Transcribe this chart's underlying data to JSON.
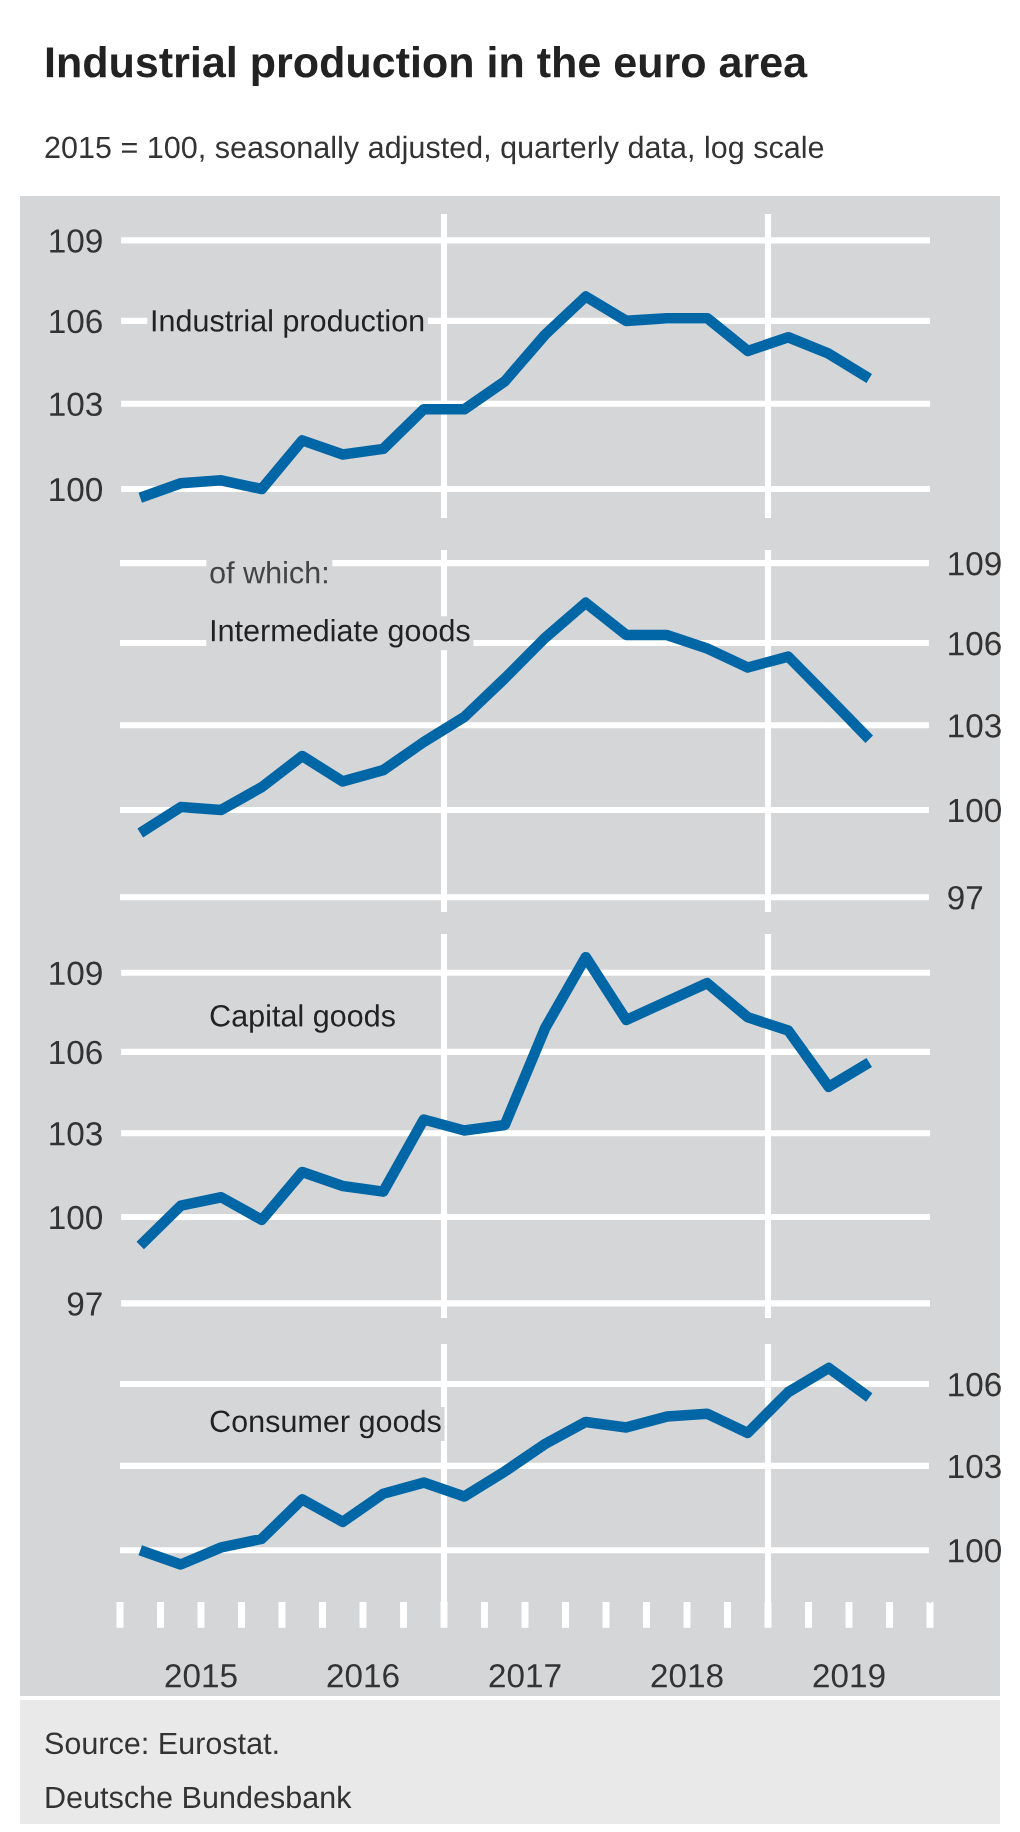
{
  "chart_data": [
    {
      "type": "line",
      "title": "Industrial production in the euro area",
      "subtitle": "2015 = 100, seasonally adjusted, quarterly data, log scale",
      "log": true,
      "grid": "y",
      "tick_labels": "y",
      "xlim": [
        2015,
        2020
      ],
      "ylim": [
        99,
        110
      ],
      "yticks": [
        100,
        103,
        106,
        109
      ],
      "x": [
        2015.125,
        2015.375,
        2015.625,
        2015.875,
        2016.125,
        2016.375,
        2016.625,
        2016.875,
        2017.125,
        2017.375,
        2017.625,
        2017.875,
        2018.125,
        2018.375,
        2018.625,
        2018.875,
        2019.125,
        2019.375,
        2019.625
      ],
      "series": [
        {
          "name": "Industrial production",
          "color": "#0066a6",
          "values": [
            99.7,
            100.2,
            100.3,
            100.0,
            101.7,
            101.2,
            101.4,
            102.8,
            102.8,
            103.8,
            105.5,
            106.9,
            106.0,
            106.1,
            106.1,
            104.9,
            105.4,
            104.8,
            103.9
          ]
        }
      ],
      "ref_lines": [
        {
          "axis": "x",
          "value": 2017,
          "color": "#ffffff"
        },
        {
          "axis": "x",
          "value": 2019,
          "color": "#ffffff"
        }
      ]
    },
    {
      "type": "line",
      "log": true,
      "grid": "y",
      "tick_labels": "y",
      "xlim": [
        2015,
        2020
      ],
      "y2lim": [
        96.5,
        109.5
      ],
      "y2ticks": [
        97,
        100,
        103,
        106,
        109
      ],
      "annotations": [
        "of which:"
      ],
      "x": [
        2015.125,
        2015.375,
        2015.625,
        2015.875,
        2016.125,
        2016.375,
        2016.625,
        2016.875,
        2017.125,
        2017.375,
        2017.625,
        2017.875,
        2018.125,
        2018.375,
        2018.625,
        2018.875,
        2019.125,
        2019.375,
        2019.625
      ],
      "series": [
        {
          "name": "Intermediate goods",
          "color": "#0066a6",
          "axis": "y2",
          "values": [
            99.2,
            100.1,
            100.0,
            100.8,
            101.9,
            101.0,
            101.4,
            102.4,
            103.3,
            104.7,
            106.2,
            107.5,
            106.3,
            106.3,
            105.8,
            105.1,
            105.5,
            104.0,
            102.5
          ]
        }
      ],
      "ref_lines": [
        {
          "axis": "x",
          "value": 2017,
          "color": "#ffffff"
        },
        {
          "axis": "x",
          "value": 2019,
          "color": "#ffffff"
        }
      ]
    },
    {
      "type": "line",
      "log": true,
      "grid": "y",
      "tick_labels": "y",
      "xlim": [
        2015,
        2020
      ],
      "ylim": [
        96.5,
        110.5
      ],
      "yticks": [
        97,
        100,
        103,
        106,
        109
      ],
      "x": [
        2015.125,
        2015.375,
        2015.625,
        2015.875,
        2016.125,
        2016.375,
        2016.625,
        2016.875,
        2017.125,
        2017.375,
        2017.625,
        2017.875,
        2018.125,
        2018.375,
        2018.625,
        2018.875,
        2019.125,
        2019.375,
        2019.625
      ],
      "series": [
        {
          "name": "Capital goods",
          "color": "#0066a6",
          "values": [
            99.0,
            100.4,
            100.7,
            99.9,
            101.6,
            101.1,
            100.9,
            103.5,
            103.1,
            103.3,
            106.9,
            109.6,
            107.2,
            107.9,
            108.6,
            107.3,
            106.8,
            104.7,
            105.6
          ]
        }
      ],
      "ref_lines": [
        {
          "axis": "x",
          "value": 2017,
          "color": "#ffffff"
        },
        {
          "axis": "x",
          "value": 2019,
          "color": "#ffffff"
        }
      ]
    },
    {
      "type": "line",
      "log": true,
      "grid": "y",
      "xlim": [
        2015,
        2020
      ],
      "y2lim": [
        98.2,
        107.5
      ],
      "y2ticks": [
        100,
        103,
        106
      ],
      "xticks": [
        {
          "value": 2015,
          "label": null
        },
        {
          "value": 2015.25,
          "label": null
        },
        {
          "value": 2015.5,
          "label": "2015"
        },
        {
          "value": 2015.75,
          "label": null
        },
        {
          "value": 2016,
          "label": null
        },
        {
          "value": 2016.25,
          "label": null
        },
        {
          "value": 2016.5,
          "label": "2016"
        },
        {
          "value": 2016.75,
          "label": null
        },
        {
          "value": 2017,
          "label": null
        },
        {
          "value": 2017.25,
          "label": null
        },
        {
          "value": 2017.5,
          "label": "2017"
        },
        {
          "value": 2017.75,
          "label": null
        },
        {
          "value": 2018,
          "label": null
        },
        {
          "value": 2018.25,
          "label": null
        },
        {
          "value": 2018.5,
          "label": "2018"
        },
        {
          "value": 2018.75,
          "label": null
        },
        {
          "value": 2019,
          "label": null
        },
        {
          "value": 2019.25,
          "label": null
        },
        {
          "value": 2019.5,
          "label": "2019"
        },
        {
          "value": 2019.75,
          "label": null
        },
        {
          "value": 2020,
          "label": null
        }
      ],
      "x": [
        2015.125,
        2015.375,
        2015.625,
        2015.875,
        2016.125,
        2016.375,
        2016.625,
        2016.875,
        2017.125,
        2017.375,
        2017.625,
        2017.875,
        2018.125,
        2018.375,
        2018.625,
        2018.875,
        2019.125,
        2019.375,
        2019.625
      ],
      "series": [
        {
          "name": "Consumer goods",
          "color": "#0066a6",
          "axis": "y2",
          "values": [
            100.0,
            99.5,
            100.1,
            100.4,
            101.8,
            101.0,
            102.0,
            102.4,
            101.9,
            102.8,
            103.8,
            104.6,
            104.4,
            104.8,
            104.9,
            104.2,
            105.7,
            106.6,
            105.5
          ]
        }
      ],
      "ref_lines": [
        {
          "axis": "x",
          "value": 2017,
          "color": "#ffffff"
        },
        {
          "axis": "x",
          "value": 2019,
          "color": "#ffffff"
        }
      ],
      "annotations": [
        "Source: Eurostat.",
        "Deutsche Bundesbank"
      ]
    }
  ]
}
